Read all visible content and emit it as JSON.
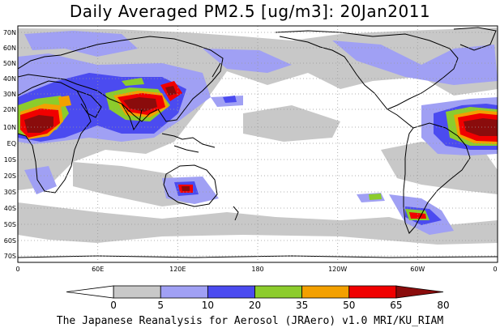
{
  "title": "Daily Averaged PM2.5 [ug/m3]: 20Jan2011",
  "credit": "The Japanese Reanalysis for Aerosol (JRAero) v1.0 MRI/KU_RIAM",
  "lat_labels": [
    "70N",
    "60N",
    "50N",
    "40N",
    "30N",
    "20N",
    "10N",
    "EQ",
    "10S",
    "20S",
    "30S",
    "40S",
    "50S",
    "60S",
    "70S"
  ],
  "lon_labels": [
    "0",
    "60E",
    "120E",
    "180",
    "120W",
    "60W",
    "0"
  ],
  "colorbar": {
    "labels": [
      "0",
      "5",
      "10",
      "20",
      "35",
      "50",
      "65",
      "80"
    ],
    "colors": [
      "#ffffff",
      "#c8c8c8",
      "#a0a0f4",
      "#4b4bf0",
      "#8ccc2c",
      "#f3a000",
      "#f00000",
      "#8a0c0c"
    ]
  },
  "colors": {
    "coast": "#000000",
    "grid": "#999999"
  }
}
